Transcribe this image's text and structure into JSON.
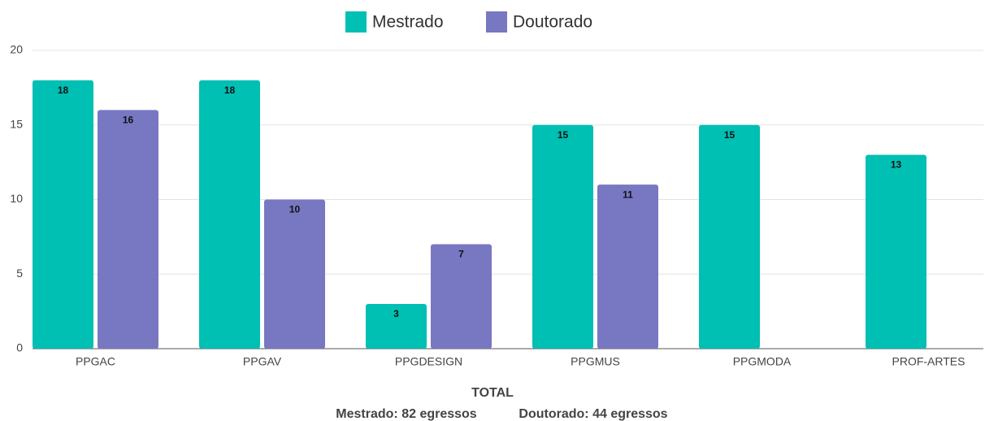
{
  "chart_data": {
    "type": "bar",
    "categories": [
      "PPGAC",
      "PPGAV",
      "PPGDESIGN",
      "PPGMUS",
      "PPGMODA",
      "PROF-ARTES"
    ],
    "series": [
      {
        "name": "Mestrado",
        "color": "#00bfb3",
        "values": [
          18,
          18,
          3,
          15,
          15,
          13
        ]
      },
      {
        "name": "Doutorado",
        "color": "#7777c2",
        "values": [
          16,
          10,
          7,
          11,
          null,
          null
        ]
      }
    ],
    "ylim": [
      0,
      20
    ],
    "yticks": [
      0,
      5,
      10,
      15,
      20
    ],
    "grid": true,
    "legend": "top",
    "annotations": [
      "TOTAL",
      "Mestrado: 82 egressos",
      "Doutorado: 44 egressos"
    ]
  }
}
